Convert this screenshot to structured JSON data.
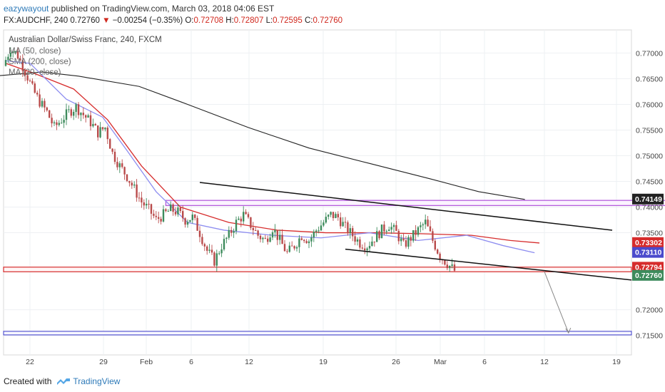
{
  "header": {
    "author": "eazywayout",
    "published_text": " published on TradingView.com, March 03, 2018 04:06 EST",
    "symbol": "FX:AUDCHF, 240",
    "last": "0.72760",
    "change_arrow": "▼",
    "change": "−0.00254 (−0.35%)",
    "o_label": "O:",
    "o_val": "0.72708",
    "h_label": "H:",
    "h_val": "0.72807",
    "l_label": "L:",
    "l_val": "0.72595",
    "c_label": "C:",
    "c_val": "0.72760"
  },
  "legend": {
    "title": "Australian Dollar/Swiss Franc, 240, FXCM",
    "ma50": "MA (50, close)",
    "sma200": "SMA (200, close)",
    "ma20": "MA (20, close)"
  },
  "footer": {
    "created_with": "Created with",
    "brand": "TradingView"
  },
  "colors": {
    "up": "#3d8b5c",
    "down": "#b94a4a",
    "ma50": "#d62c2c",
    "sma200": "#222222",
    "ma20": "#8d8df0",
    "support": "#d62c2c",
    "target": "#4a4acc",
    "resistance_box": "#b45ddb",
    "price_badge": "#3d8b5c"
  },
  "chart_data": {
    "type": "candlestick",
    "x_ticks": [
      "22",
      "29",
      "Feb",
      "6",
      "12",
      "19",
      "26",
      "Mar",
      "6",
      "12",
      "19"
    ],
    "y_ticks": [
      "0.77000",
      "0.76500",
      "0.76000",
      "0.75500",
      "0.75000",
      "0.74500",
      "0.74000",
      "0.73500",
      "0.72000",
      "0.71500"
    ],
    "ylim": [
      0.7112,
      0.7745
    ],
    "price_labels": [
      {
        "value": "0.74149",
        "price": 0.74149,
        "color": "#222222"
      },
      {
        "value": "0.73302",
        "price": 0.73302,
        "color": "#d62c2c"
      },
      {
        "value": "0.73110",
        "price": 0.7311,
        "color": "#4a4acc"
      },
      {
        "value": "0.72794",
        "price": 0.72794,
        "color": "#d62c2c"
      },
      {
        "value": "0.72760",
        "price": 0.7276,
        "color": "#3d8b5c"
      }
    ],
    "candle_close_path": [
      0.7675,
      0.771,
      0.7695,
      0.7665,
      0.763,
      0.7605,
      0.7585,
      0.7555,
      0.757,
      0.7585,
      0.7595,
      0.758,
      0.7565,
      0.7545,
      0.7555,
      0.7505,
      0.748,
      0.746,
      0.7435,
      0.741,
      0.7395,
      0.7375,
      0.7385,
      0.7395,
      0.739,
      0.7375,
      0.738,
      0.735,
      0.7315,
      0.7295,
      0.7325,
      0.7345,
      0.737,
      0.7385,
      0.7365,
      0.7345,
      0.7335,
      0.736,
      0.7335,
      0.731,
      0.7325,
      0.7345,
      0.7335,
      0.7355,
      0.737,
      0.7385,
      0.738,
      0.736,
      0.7345,
      0.733,
      0.7325,
      0.734,
      0.7355,
      0.7365,
      0.735,
      0.7325,
      0.734,
      0.7355,
      0.737,
      0.7335,
      0.7305,
      0.729,
      0.7276
    ],
    "series": [
      {
        "name": "MA (50, close)",
        "color": "#d62c2c",
        "points": [
          [
            0,
            0.768
          ],
          [
            12,
            0.766
          ],
          [
            28,
            0.763
          ],
          [
            42,
            0.757
          ],
          [
            56,
            0.748
          ],
          [
            72,
            0.74
          ],
          [
            92,
            0.737
          ],
          [
            112,
            0.7355
          ],
          [
            132,
            0.735
          ],
          [
            152,
            0.735
          ],
          [
            172,
            0.7348
          ],
          [
            192,
            0.7345
          ],
          [
            208,
            0.7335
          ],
          [
            220,
            0.733
          ]
        ]
      },
      {
        "name": "SMA (200, close)",
        "color": "#222222",
        "points": [
          [
            -5,
            0.7655
          ],
          [
            15,
            0.7663
          ],
          [
            30,
            0.7655
          ],
          [
            55,
            0.7635
          ],
          [
            75,
            0.76
          ],
          [
            100,
            0.7555
          ],
          [
            125,
            0.7515
          ],
          [
            150,
            0.7485
          ],
          [
            175,
            0.7455
          ],
          [
            195,
            0.743
          ],
          [
            214,
            0.74149
          ]
        ]
      },
      {
        "name": "MA (20, close)",
        "color": "#8d8df0",
        "points": [
          [
            0,
            0.7685
          ],
          [
            10,
            0.768
          ],
          [
            25,
            0.761
          ],
          [
            40,
            0.7575
          ],
          [
            50,
            0.751
          ],
          [
            62,
            0.743
          ],
          [
            75,
            0.737
          ],
          [
            90,
            0.7355
          ],
          [
            110,
            0.7345
          ],
          [
            130,
            0.734
          ],
          [
            150,
            0.735
          ],
          [
            170,
            0.7335
          ],
          [
            190,
            0.7345
          ],
          [
            205,
            0.7325
          ],
          [
            218,
            0.7311
          ]
        ]
      }
    ],
    "drawings": {
      "upper_trendline": [
        [
          80,
          0.7448
        ],
        [
          250,
          0.7355
        ]
      ],
      "lower_trendline": [
        [
          140,
          0.7318
        ],
        [
          258,
          0.7258
        ]
      ],
      "resistance_zone": [
        [
          66,
          0.7413
        ],
        [
          275,
          0.7403
        ]
      ],
      "support_zone": [
        [
          -5,
          0.7283
        ],
        [
          300,
          0.7274
        ]
      ],
      "target_zone": [
        [
          -5,
          0.7158
        ],
        [
          300,
          0.7151
        ]
      ],
      "projection_arrow": [
        [
          222,
          0.7275
        ],
        [
          232,
          0.7155
        ]
      ]
    }
  }
}
